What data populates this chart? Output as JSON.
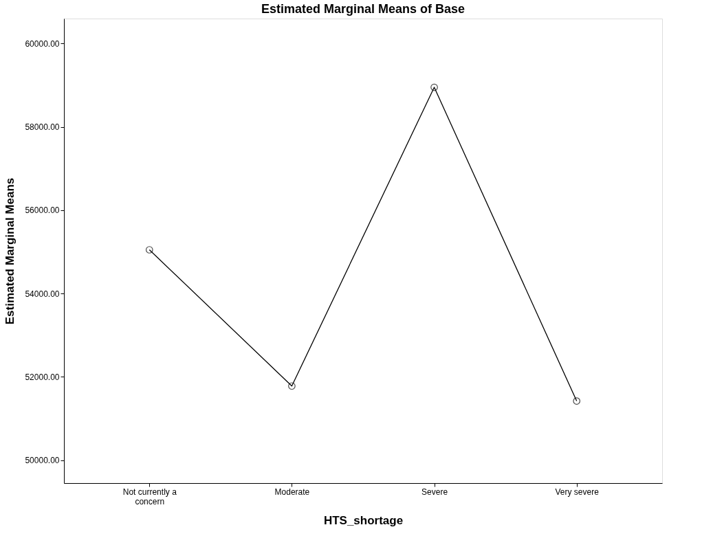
{
  "chart_data": {
    "type": "line",
    "title": "Estimated Marginal Means of Base",
    "xlabel": "HTS_shortage",
    "ylabel": "Estimated Marginal Means",
    "categories": [
      "Not currently a concern",
      "Moderate",
      "Severe",
      "Very severe"
    ],
    "series": [
      {
        "color": "#000000",
        "values": [
          55050,
          51780,
          58950,
          51420
        ]
      }
    ],
    "ylim": [
      49450,
      60600
    ],
    "yticks": [
      {
        "value": 50000,
        "label": "50000.00"
      },
      {
        "value": 52000,
        "label": "52000.00"
      },
      {
        "value": 54000,
        "label": "54000.00"
      },
      {
        "value": 56000,
        "label": "56000.00"
      },
      {
        "value": 58000,
        "label": "58000.00"
      },
      {
        "value": 60000,
        "label": "60000.00"
      }
    ],
    "grid": false,
    "legend": false,
    "marker": "circle",
    "line_style": "solid"
  }
}
